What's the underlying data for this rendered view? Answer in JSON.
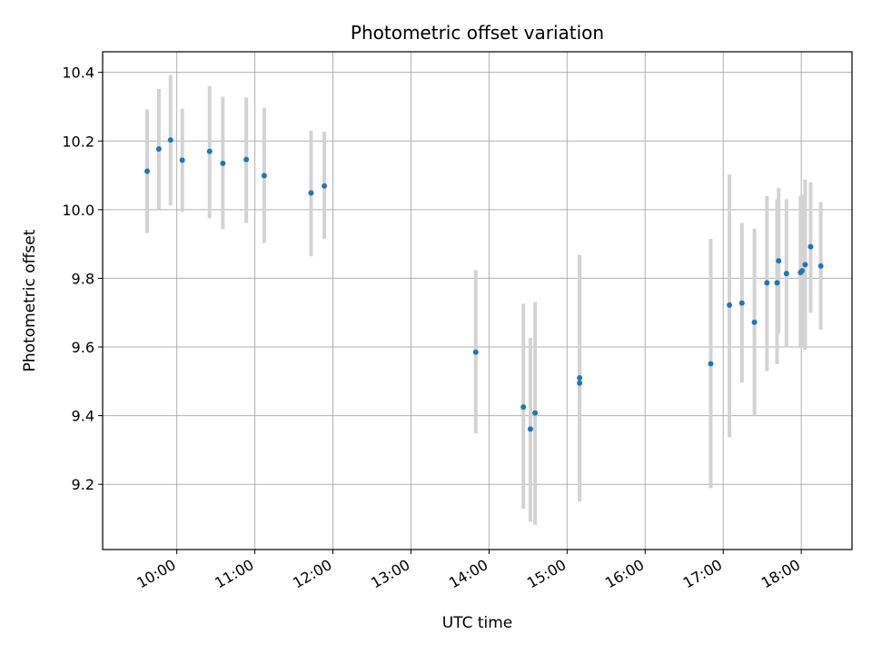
{
  "chart_data": {
    "type": "scatter",
    "title": "Photometric offset variation",
    "xlabel": "UTC time",
    "ylabel": "Photometric offset",
    "x_unit": "hour",
    "xlim": [
      9.05,
      18.65
    ],
    "ylim": [
      9.01,
      10.46
    ],
    "x_ticks": [
      {
        "value": 10,
        "label": "10:00"
      },
      {
        "value": 11,
        "label": "11:00"
      },
      {
        "value": 12,
        "label": "12:00"
      },
      {
        "value": 13,
        "label": "13:00"
      },
      {
        "value": 14,
        "label": "14:00"
      },
      {
        "value": 15,
        "label": "15:00"
      },
      {
        "value": 16,
        "label": "16:00"
      },
      {
        "value": 17,
        "label": "17:00"
      },
      {
        "value": 18,
        "label": "18:00"
      }
    ],
    "y_ticks": [
      {
        "value": 9.2,
        "label": "9.2"
      },
      {
        "value": 9.4,
        "label": "9.4"
      },
      {
        "value": 9.6,
        "label": "9.6"
      },
      {
        "value": 9.8,
        "label": "9.8"
      },
      {
        "value": 10.0,
        "label": "10.0"
      },
      {
        "value": 10.2,
        "label": "10.2"
      },
      {
        "value": 10.4,
        "label": "10.4"
      }
    ],
    "grid": true,
    "marker_color": "#1f77b4",
    "errorbar_color": "#d3d3d3",
    "points": [
      {
        "x": 9.62,
        "y": 10.112,
        "low": 9.932,
        "high": 10.292
      },
      {
        "x": 9.77,
        "y": 10.177,
        "low": 10.002,
        "high": 10.352
      },
      {
        "x": 9.92,
        "y": 10.203,
        "low": 10.013,
        "high": 10.393
      },
      {
        "x": 10.07,
        "y": 10.144,
        "low": 9.994,
        "high": 10.294
      },
      {
        "x": 10.42,
        "y": 10.17,
        "low": 9.975,
        "high": 10.36
      },
      {
        "x": 10.59,
        "y": 10.135,
        "low": 9.943,
        "high": 10.329
      },
      {
        "x": 10.89,
        "y": 10.146,
        "low": 9.961,
        "high": 10.326
      },
      {
        "x": 11.12,
        "y": 10.099,
        "low": 9.903,
        "high": 10.297
      },
      {
        "x": 11.72,
        "y": 10.049,
        "low": 9.864,
        "high": 10.23
      },
      {
        "x": 11.89,
        "y": 10.069,
        "low": 9.915,
        "high": 10.227
      },
      {
        "x": 13.83,
        "y": 9.585,
        "low": 9.348,
        "high": 9.824
      },
      {
        "x": 14.44,
        "y": 9.425,
        "low": 9.129,
        "high": 9.726
      },
      {
        "x": 14.53,
        "y": 9.361,
        "low": 9.091,
        "high": 9.627
      },
      {
        "x": 14.59,
        "y": 9.408,
        "low": 9.082,
        "high": 9.731
      },
      {
        "x": 15.16,
        "y": 9.51,
        "low": 9.15,
        "high": 9.868
      },
      {
        "x": 15.16,
        "y": 9.495,
        "low": 9.15,
        "high": 9.868
      },
      {
        "x": 16.84,
        "y": 9.551,
        "low": 9.189,
        "high": 9.915
      },
      {
        "x": 17.08,
        "y": 9.722,
        "low": 9.337,
        "high": 10.102
      },
      {
        "x": 17.24,
        "y": 9.728,
        "low": 9.497,
        "high": 9.961
      },
      {
        "x": 17.4,
        "y": 9.672,
        "low": 9.4,
        "high": 9.945
      },
      {
        "x": 17.56,
        "y": 9.787,
        "low": 9.53,
        "high": 10.04
      },
      {
        "x": 17.69,
        "y": 9.787,
        "low": 9.55,
        "high": 10.03
      },
      {
        "x": 17.71,
        "y": 9.851,
        "low": 9.64,
        "high": 10.064
      },
      {
        "x": 17.81,
        "y": 9.814,
        "low": 9.598,
        "high": 10.03
      },
      {
        "x": 17.99,
        "y": 9.817,
        "low": 9.597,
        "high": 10.04
      },
      {
        "x": 18.01,
        "y": 9.822,
        "low": 9.6,
        "high": 10.045
      },
      {
        "x": 18.05,
        "y": 9.84,
        "low": 9.592,
        "high": 10.088
      },
      {
        "x": 18.12,
        "y": 9.892,
        "low": 9.7,
        "high": 10.08
      },
      {
        "x": 18.25,
        "y": 9.836,
        "low": 9.65,
        "high": 10.022
      }
    ]
  }
}
